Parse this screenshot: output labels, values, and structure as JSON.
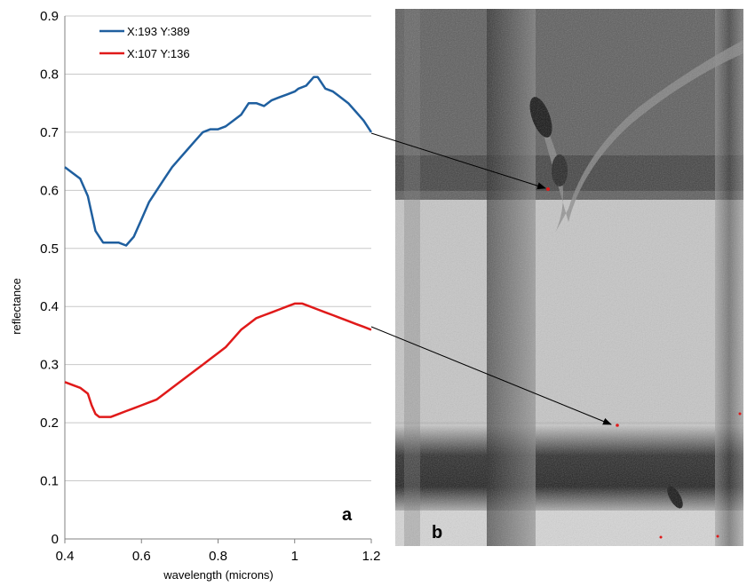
{
  "chart_data": {
    "type": "line",
    "xlabel": "wavelength (microns)",
    "ylabel": "reflectance",
    "xlim": [
      0.4,
      1.2
    ],
    "ylim": [
      0,
      0.9
    ],
    "xticks": [
      "0.4",
      "0.6",
      "0.8",
      "1",
      "1.2"
    ],
    "yticks": [
      "0",
      "0.1",
      "0.2",
      "0.3",
      "0.4",
      "0.5",
      "0.6",
      "0.7",
      "0.8",
      "0.9"
    ],
    "grid": "horizontal",
    "legend_position": "top-left",
    "series": [
      {
        "name": "X:193 Y:389",
        "color": "#1f5f9f",
        "x": [
          0.4,
          0.42,
          0.44,
          0.46,
          0.47,
          0.48,
          0.49,
          0.5,
          0.52,
          0.54,
          0.56,
          0.58,
          0.6,
          0.62,
          0.64,
          0.66,
          0.68,
          0.7,
          0.72,
          0.74,
          0.76,
          0.78,
          0.8,
          0.82,
          0.84,
          0.86,
          0.88,
          0.9,
          0.92,
          0.94,
          0.96,
          0.98,
          1.0,
          1.01,
          1.03,
          1.05,
          1.06,
          1.08,
          1.1,
          1.12,
          1.14,
          1.16,
          1.18,
          1.2
        ],
        "y": [
          0.64,
          0.63,
          0.62,
          0.59,
          0.56,
          0.53,
          0.52,
          0.51,
          0.51,
          0.51,
          0.505,
          0.52,
          0.55,
          0.58,
          0.6,
          0.62,
          0.64,
          0.655,
          0.67,
          0.685,
          0.7,
          0.705,
          0.705,
          0.71,
          0.72,
          0.73,
          0.75,
          0.75,
          0.745,
          0.755,
          0.76,
          0.765,
          0.77,
          0.775,
          0.78,
          0.795,
          0.795,
          0.775,
          0.77,
          0.76,
          0.75,
          0.735,
          0.72,
          0.7
        ]
      },
      {
        "name": "X:107 Y:136",
        "color": "#e01a1a",
        "x": [
          0.4,
          0.42,
          0.44,
          0.46,
          0.47,
          0.48,
          0.49,
          0.5,
          0.52,
          0.54,
          0.56,
          0.58,
          0.6,
          0.62,
          0.64,
          0.66,
          0.68,
          0.7,
          0.72,
          0.74,
          0.76,
          0.78,
          0.8,
          0.82,
          0.84,
          0.86,
          0.88,
          0.9,
          0.92,
          0.94,
          0.96,
          0.98,
          1.0,
          1.02,
          1.04,
          1.06,
          1.08,
          1.1,
          1.12,
          1.14,
          1.16,
          1.18,
          1.2
        ],
        "y": [
          0.27,
          0.265,
          0.26,
          0.25,
          0.23,
          0.215,
          0.21,
          0.21,
          0.21,
          0.215,
          0.22,
          0.225,
          0.23,
          0.235,
          0.24,
          0.25,
          0.26,
          0.27,
          0.28,
          0.29,
          0.3,
          0.31,
          0.32,
          0.33,
          0.345,
          0.36,
          0.37,
          0.38,
          0.385,
          0.39,
          0.395,
          0.4,
          0.405,
          0.405,
          0.4,
          0.395,
          0.39,
          0.385,
          0.38,
          0.375,
          0.37,
          0.365,
          0.36
        ]
      }
    ]
  },
  "panels": {
    "a_label": "a",
    "b_label": "b"
  },
  "image_panel": {
    "description_color_dark": "#1a1a1a",
    "description_color_light": "#e6e6e6"
  }
}
